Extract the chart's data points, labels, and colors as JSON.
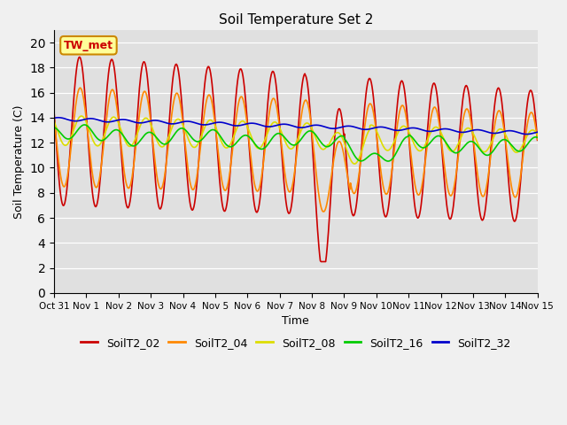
{
  "title": "Soil Temperature Set 2",
  "xlabel": "Time",
  "ylabel": "Soil Temperature (C)",
  "ylim": [
    0,
    21
  ],
  "yticks": [
    0,
    2,
    4,
    6,
    8,
    10,
    12,
    14,
    16,
    18,
    20
  ],
  "xtick_labels": [
    "Oct 31",
    "Nov 1",
    "Nov 2",
    "Nov 3",
    "Nov 4",
    "Nov 5",
    "Nov 6",
    "Nov 7",
    "Nov 8",
    "Nov 9",
    "Nov 10",
    "Nov 11",
    "Nov 12",
    "Nov 13",
    "Nov 14",
    "Nov 15"
  ],
  "series_colors": {
    "SoilT2_02": "#cc0000",
    "SoilT2_04": "#ff8800",
    "SoilT2_08": "#dddd00",
    "SoilT2_16": "#00cc00",
    "SoilT2_32": "#0000cc"
  },
  "annotation_text": "TW_met",
  "annotation_bbox_face": "#ffff99",
  "annotation_bbox_edge": "#cc8800",
  "bg_color": "#e0e0e0",
  "fig_bg_color": "#f0f0f0",
  "linewidth": 1.2
}
